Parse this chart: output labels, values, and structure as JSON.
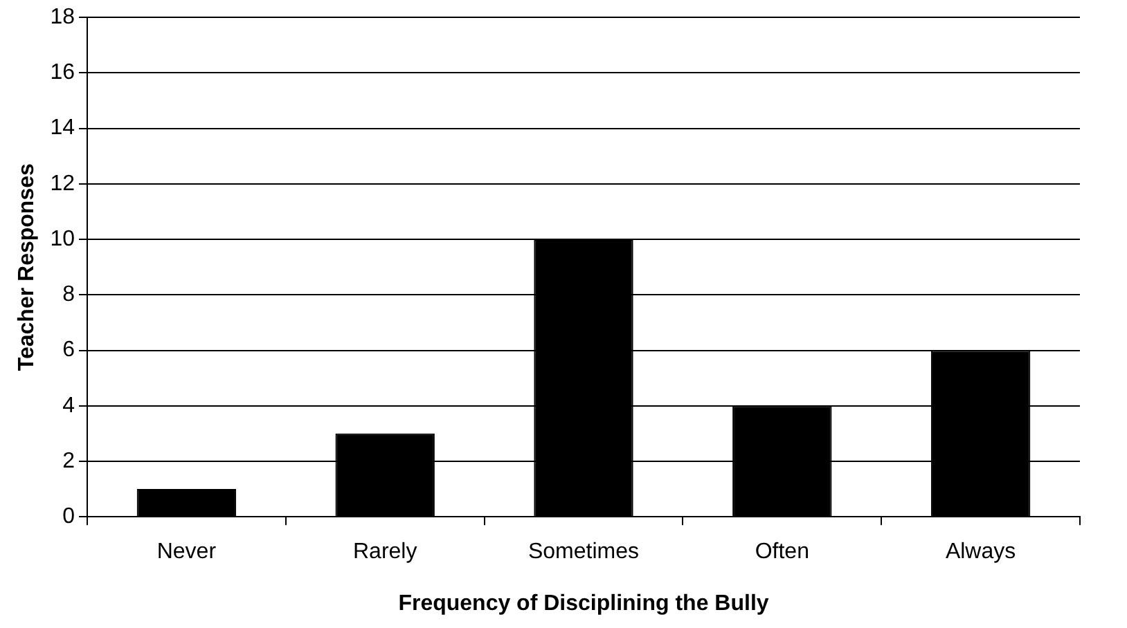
{
  "chart_data": {
    "type": "bar",
    "xlabel": "Frequency of Disciplining the Bully",
    "ylabel": "Teacher Responses",
    "categories": [
      "Never",
      "Rarely",
      "Sometimes",
      "Often",
      "Always"
    ],
    "values": [
      1,
      3,
      10,
      4,
      6
    ],
    "color": "#000000",
    "ylim": [
      0,
      18
    ],
    "yticks": [
      0,
      2,
      4,
      6,
      8,
      10,
      12,
      14,
      16,
      18
    ],
    "grid": "y",
    "legend": false
  }
}
